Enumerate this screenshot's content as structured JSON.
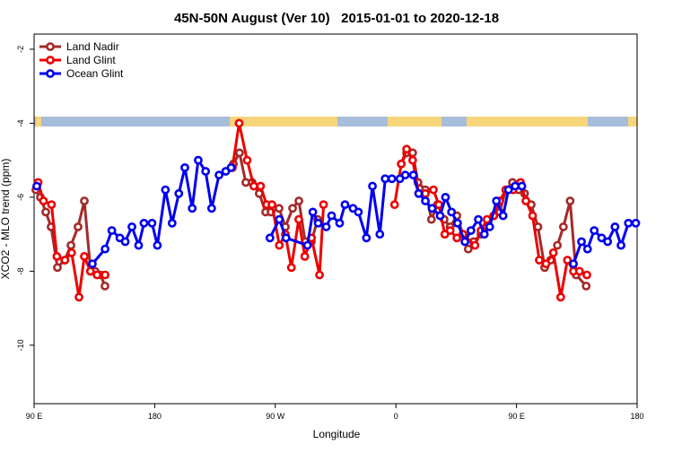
{
  "chart_data": {
    "type": "line",
    "title": "45N-50N August (Ver 10)   2015-01-01 to 2020-12-18",
    "x_label": "Longitude",
    "y_label": "XCO2 - MLO trend (ppm)",
    "xlim": [
      90,
      540
    ],
    "ylim": [
      -11.58,
      -1.59
    ],
    "xticks": [
      {
        "value": 90,
        "label": "90 E"
      },
      {
        "value": 180,
        "label": "180"
      },
      {
        "value": 270,
        "label": "90 W"
      },
      {
        "value": 360,
        "label": "0"
      },
      {
        "value": 450,
        "label": "90 E"
      },
      {
        "value": 540,
        "label": "180"
      }
    ],
    "yticks": [
      -2,
      -4,
      -6,
      -8,
      -10
    ],
    "legend": "top-left",
    "series": [
      {
        "name": "Land Nadir",
        "color": "#a52a2a",
        "x": [
          91.3,
          94.7,
          98.7,
          102.7,
          107.4,
          112.8,
          117.5,
          122.8,
          127.5,
          132.2,
          135.5,
          139.6,
          142.9,
          null,
          238.7,
          243.3,
          248,
          252.7,
          258,
          262.8,
          266.8,
          272.8,
          277.5,
          282.9,
          287.6,
          292.3,
          296.9,
          301.6,
          null,
          364,
          368,
          372.5,
          376.5,
          382,
          386.5,
          391,
          396,
          400.5,
          405.5,
          410,
          414,
          418,
          423.5,
          428,
          433,
          437.5,
          442,
          447,
          451.5,
          456,
          461,
          466,
          471,
          475.5,
          480.5,
          485,
          490,
          494.5,
          502
        ],
        "values": [
          -5.8,
          -6.0,
          -6.4,
          -6.8,
          -7.9,
          -7.7,
          -7.3,
          -6.8,
          -6.1,
          -8.0,
          -8.0,
          -8.1,
          -8.4,
          null,
          -5.1,
          -4.8,
          -5.6,
          -5.6,
          -5.9,
          -6.4,
          -6.4,
          -6.3,
          -6.8,
          -6.3,
          -6.1,
          -7.2,
          -7.2,
          -6.6,
          null,
          -5.1,
          -4.8,
          -4.8,
          -5.6,
          -5.8,
          -6.6,
          -6.2,
          -6.6,
          -6.8,
          -6.5,
          -7.0,
          -7.4,
          -7.2,
          -7.0,
          -6.8,
          -6.5,
          -6.4,
          -5.8,
          -5.6,
          -5.8,
          -5.9,
          -6.2,
          -6.8,
          -7.9,
          -7.7,
          -7.3,
          -6.8,
          -6.1,
          -8.1,
          -8.4
        ]
      },
      {
        "name": "Land Glint",
        "color": "#ee0000",
        "x": [
          93,
          97,
          103,
          107,
          113,
          118,
          123.5,
          127.5,
          132,
          137,
          143,
          null,
          238,
          243,
          249,
          254,
          259,
          263.5,
          267.5,
          273,
          277.5,
          282,
          287.5,
          292,
          297,
          303,
          306,
          null,
          359,
          364,
          368,
          372.5,
          377,
          382,
          388,
          392,
          396.5,
          400.5,
          405.5,
          410,
          419,
          423.5,
          428,
          433,
          437.5,
          442,
          447.5,
          453,
          457,
          462,
          467,
          472,
          477.5,
          483,
          488,
          492.5,
          497,
          502.5
        ],
        "values": [
          -5.6,
          -6.1,
          -6.2,
          -7.6,
          -7.7,
          -7.5,
          -8.7,
          -7.6,
          -8.0,
          -8.1,
          -8.1,
          null,
          -5.2,
          -4.0,
          -5.0,
          -5.7,
          -5.7,
          -6.2,
          -6.2,
          -7.3,
          -7.0,
          -7.9,
          -6.6,
          -7.6,
          -7.1,
          -8.1,
          -6.2,
          null,
          -6.2,
          -5.1,
          -4.7,
          -5.0,
          -5.9,
          -5.9,
          -5.8,
          -6.2,
          -7.0,
          -6.9,
          -7.1,
          -7.0,
          -7.3,
          -6.9,
          -6.6,
          -6.5,
          -6.1,
          -5.8,
          -5.8,
          -5.6,
          -6.1,
          -6.5,
          -7.7,
          -7.8,
          -7.5,
          -8.7,
          -7.7,
          -8.0,
          -8.0,
          -8.1
        ]
      },
      {
        "name": "Ocean Glint",
        "color": "#0000ee",
        "x": [
          92,
          null,
          133.5,
          143,
          148,
          154,
          158,
          163,
          168,
          172,
          178,
          182,
          188,
          193,
          198,
          202.5,
          208,
          212.5,
          218,
          222.5,
          228,
          233,
          237,
          null,
          266,
          273,
          278,
          294,
          298,
          302,
          308,
          312,
          318,
          322,
          328,
          332,
          338,
          342.5,
          348,
          352,
          357,
          363,
          367,
          373,
          377,
          382,
          387,
          393,
          397,
          401.5,
          406,
          411.5,
          416,
          421.5,
          426,
          430,
          435,
          440,
          444,
          449,
          454,
          null,
          492.5,
          498.5,
          503,
          508,
          513.5,
          518,
          523.5,
          528,
          533.5,
          539
        ],
        "values": [
          -5.7,
          null,
          -7.8,
          -7.4,
          -6.9,
          -7.1,
          -7.2,
          -6.8,
          -7.3,
          -6.7,
          -6.7,
          -7.3,
          -5.8,
          -6.7,
          -5.9,
          -5.2,
          -6.3,
          -5.0,
          -5.3,
          -6.3,
          -5.4,
          -5.3,
          -5.2,
          null,
          -7.1,
          -6.6,
          -7.1,
          -7.3,
          -6.4,
          -6.7,
          -6.8,
          -6.5,
          -6.7,
          -6.2,
          -6.3,
          -6.4,
          -7.1,
          -5.7,
          -7.0,
          -5.5,
          -5.5,
          -5.5,
          -5.4,
          -5.4,
          -5.9,
          -6.1,
          -6.3,
          -6.5,
          -6.0,
          -6.4,
          -6.7,
          -7.2,
          -6.9,
          -6.6,
          -7.0,
          -6.8,
          -6.1,
          -6.5,
          -5.8,
          -5.7,
          -5.7,
          null,
          -7.8,
          -7.2,
          -7.4,
          -6.9,
          -7.1,
          -7.2,
          -6.8,
          -7.3,
          -6.7,
          -6.7
        ]
      }
    ]
  }
}
